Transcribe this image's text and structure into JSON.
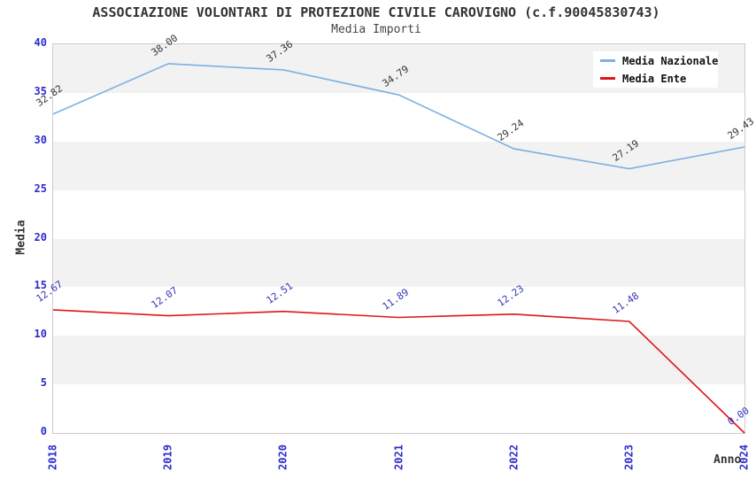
{
  "chart_data": {
    "type": "line",
    "title": "ASSOCIAZIONE VOLONTARI DI PROTEZIONE CIVILE CAROVIGNO (c.f.90045830743)",
    "subtitle": "Media Importi",
    "xlabel": "Anno",
    "ylabel": "Media",
    "categories": [
      "2018",
      "2019",
      "2020",
      "2021",
      "2022",
      "2023",
      "2024"
    ],
    "ylim": [
      0,
      40
    ],
    "ytick_step": 5,
    "grid": "horizontal-alternating-bands",
    "legend_position": "top-right",
    "series": [
      {
        "name": "Media Nazionale",
        "color": "#7cb0e2",
        "label_color": "#333333",
        "values": [
          32.82,
          38.0,
          37.36,
          34.79,
          29.24,
          27.19,
          29.43
        ],
        "labels": [
          "32.82",
          "38.00",
          "37.36",
          "34.79",
          "29.24",
          "27.19",
          "29.43"
        ]
      },
      {
        "name": "Media Ente",
        "color": "#e01616",
        "label_color": "#3333bb",
        "values": [
          12.67,
          12.07,
          12.51,
          11.89,
          12.23,
          11.48,
          0.0
        ],
        "labels": [
          "12.67",
          "12.07",
          "12.51",
          "11.89",
          "12.23",
          "11.48",
          "0.00"
        ]
      }
    ],
    "colors": {
      "tick_label": "#2c2ccc",
      "axis_label": "#333333",
      "band_odd": "#f2f2f2",
      "band_even": "#ffffff",
      "plot_border": "#cccccc",
      "legend_bg": "#ffffff"
    }
  }
}
